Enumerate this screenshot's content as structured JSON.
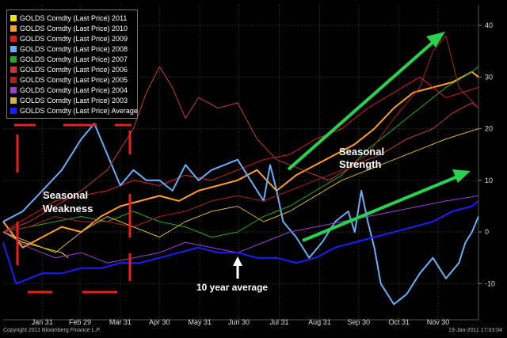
{
  "chart_data": {
    "type": "line",
    "title": "",
    "xlabel": "",
    "ylabel": "",
    "ylim": [
      -17,
      44
    ],
    "xlim": [
      0,
      365
    ],
    "x_ticks": [
      {
        "label": "Jan 31",
        "x": 30
      },
      {
        "label": "Feb 29",
        "x": 59
      },
      {
        "label": "Mar 31",
        "x": 90
      },
      {
        "label": "Apr 30",
        "x": 120
      },
      {
        "label": "May 31",
        "x": 151
      },
      {
        "label": "Jun 30",
        "x": 181
      },
      {
        "label": "Jul 31",
        "x": 212
      },
      {
        "label": "Aug 31",
        "x": 243
      },
      {
        "label": "Sep 30",
        "x": 273
      },
      {
        "label": "Oct 31",
        "x": 304
      },
      {
        "label": "Nov 30",
        "x": 334
      }
    ],
    "y_ticks": [
      {
        "label": "40",
        "y": 40
      },
      {
        "label": "30",
        "y": 30
      },
      {
        "label": "20",
        "y": 20
      },
      {
        "label": "10",
        "y": 10
      },
      {
        "label": "0",
        "y": 0
      },
      {
        "label": "-10",
        "y": -10
      }
    ],
    "grid": true,
    "legend_placement": "top-left",
    "series": [
      {
        "name": "GOLDS Comdty (Last Price) 2011",
        "color": "#f6e300",
        "width": 1,
        "x": [
          0,
          15,
          30,
          45,
          50
        ],
        "y": [
          0,
          -2,
          -3,
          -4,
          -5
        ]
      },
      {
        "name": "GOLDS Comdty (Last Price) 2010",
        "color": "#ff9e2c",
        "width": 2,
        "x": [
          0,
          15,
          30,
          45,
          60,
          75,
          90,
          105,
          120,
          135,
          150,
          165,
          180,
          195,
          210,
          225,
          240,
          255,
          270,
          285,
          300,
          315,
          330,
          345,
          360,
          365
        ],
        "y": [
          2,
          -3,
          -1,
          1,
          0,
          3,
          5,
          6,
          7,
          6,
          8,
          9,
          10,
          12,
          8,
          11,
          13,
          15,
          17,
          20,
          24,
          27,
          28,
          29,
          31,
          30
        ]
      },
      {
        "name": "GOLDS Comdty (Last Price) 2009",
        "color": "#dd1c1c",
        "width": 1,
        "x": [
          0,
          20,
          40,
          60,
          80,
          100,
          120,
          140,
          160,
          180,
          200,
          220,
          240,
          260,
          280,
          300,
          320,
          340,
          365
        ],
        "y": [
          0,
          3,
          6,
          7,
          8,
          10,
          9,
          11,
          10,
          12,
          14,
          15,
          18,
          20,
          24,
          27,
          30,
          26,
          28
        ]
      },
      {
        "name": "GOLDS Comdty (Last Price) 2008",
        "color": "#6aaef8",
        "width": 2,
        "x": [
          0,
          15,
          30,
          45,
          60,
          70,
          80,
          90,
          100,
          110,
          120,
          130,
          140,
          150,
          160,
          170,
          180,
          190,
          200,
          205,
          210,
          215,
          225,
          235,
          245,
          255,
          265,
          270,
          275,
          280,
          285,
          290,
          295,
          300,
          310,
          320,
          330,
          340,
          350,
          355,
          360,
          365
        ],
        "y": [
          2,
          4,
          8,
          12,
          18,
          21,
          15,
          9,
          12,
          10,
          10,
          8,
          13,
          10,
          12,
          13,
          14,
          10,
          6,
          13,
          8,
          2,
          -1,
          -5,
          -2,
          2,
          4,
          0,
          8,
          2,
          -3,
          -10,
          -12,
          -14,
          -12,
          -8,
          -5,
          -9,
          -6,
          -2,
          0,
          3
        ]
      },
      {
        "name": "GOLDS Comdty (Last Price) 2007",
        "color": "#22aa22",
        "width": 1,
        "x": [
          0,
          20,
          40,
          60,
          80,
          100,
          120,
          140,
          160,
          180,
          200,
          220,
          240,
          260,
          280,
          300,
          320,
          340,
          360,
          365
        ],
        "y": [
          0,
          1,
          2,
          3,
          2,
          4,
          2,
          1,
          -1,
          0,
          3,
          5,
          8,
          11,
          16,
          20,
          24,
          28,
          31,
          32
        ]
      },
      {
        "name": "GOLDS Comdty (Last Price) 2006",
        "color": "#c33a3a",
        "width": 1,
        "x": [
          0,
          20,
          40,
          60,
          80,
          100,
          110,
          120,
          130,
          140,
          150,
          165,
          180,
          195,
          210,
          230,
          250,
          270,
          290,
          310,
          330,
          345,
          360,
          365
        ],
        "y": [
          0,
          2,
          5,
          8,
          12,
          20,
          27,
          32,
          28,
          22,
          26,
          24,
          25,
          18,
          14,
          12,
          10,
          13,
          15,
          18,
          20,
          23,
          25,
          24
        ]
      },
      {
        "name": "GOLDS Comdty (Last Price) 2005",
        "color": "#aa2222",
        "width": 1,
        "x": [
          0,
          20,
          40,
          60,
          80,
          100,
          120,
          140,
          160,
          180,
          200,
          220,
          240,
          260,
          280,
          300,
          320,
          330,
          340,
          350,
          365
        ],
        "y": [
          0,
          1,
          3,
          2,
          2,
          1,
          3,
          4,
          6,
          7,
          6,
          8,
          10,
          12,
          15,
          22,
          28,
          35,
          38,
          28,
          24
        ]
      },
      {
        "name": "GOLDS Comdty (Last Price) 2004",
        "color": "#9b3fd4",
        "width": 1,
        "x": [
          0,
          20,
          40,
          60,
          80,
          100,
          120,
          140,
          160,
          180,
          200,
          220,
          240,
          260,
          280,
          300,
          320,
          340,
          365
        ],
        "y": [
          0,
          -3,
          -5,
          -4,
          -6,
          -5,
          -4,
          -2,
          -3,
          -4,
          -2,
          0,
          1,
          2,
          3,
          4,
          5,
          6,
          7
        ]
      },
      {
        "name": "GOLDS Comdty (Last Price) 2003",
        "color": "#d8b23a",
        "width": 1,
        "x": [
          0,
          20,
          40,
          60,
          80,
          100,
          120,
          140,
          160,
          180,
          200,
          220,
          240,
          260,
          280,
          300,
          320,
          340,
          365
        ],
        "y": [
          0,
          -2,
          -4,
          0,
          3,
          1,
          -1,
          2,
          4,
          5,
          2,
          4,
          7,
          10,
          12,
          14,
          16,
          18,
          20
        ]
      },
      {
        "name": "GOLDS Comdty (Last Price) Average",
        "color": "#1c1cff",
        "width": 2,
        "x": [
          0,
          10,
          20,
          30,
          45,
          60,
          75,
          90,
          105,
          120,
          135,
          150,
          165,
          180,
          195,
          210,
          225,
          240,
          255,
          270,
          285,
          300,
          315,
          330,
          345,
          360,
          365
        ],
        "y": [
          -2,
          -10,
          -9,
          -8,
          -8,
          -7,
          -7,
          -6,
          -6,
          -5,
          -4,
          -3,
          -4,
          -4,
          -5,
          -5,
          -6,
          -5,
          -3,
          -2,
          -1,
          0,
          1,
          2,
          4,
          5,
          6
        ]
      }
    ]
  },
  "annotations": {
    "seasonal_strength_line1": "Seasonal",
    "seasonal_strength_line2": "Strength",
    "seasonal_weakness_line1": "Seasonal",
    "seasonal_weakness_line2": "Weakness",
    "ten_year_average": "10 year average"
  },
  "footer": {
    "copyright": "Copyright 2011 Bloomberg Finance L.P.",
    "timestamp": "19-Jan-2011 17:03:04"
  },
  "colors": {
    "background": "#000000",
    "grid": "#2a2a2a",
    "arrow_green": "#2ad14c",
    "weakness_box": "#e8201e"
  }
}
